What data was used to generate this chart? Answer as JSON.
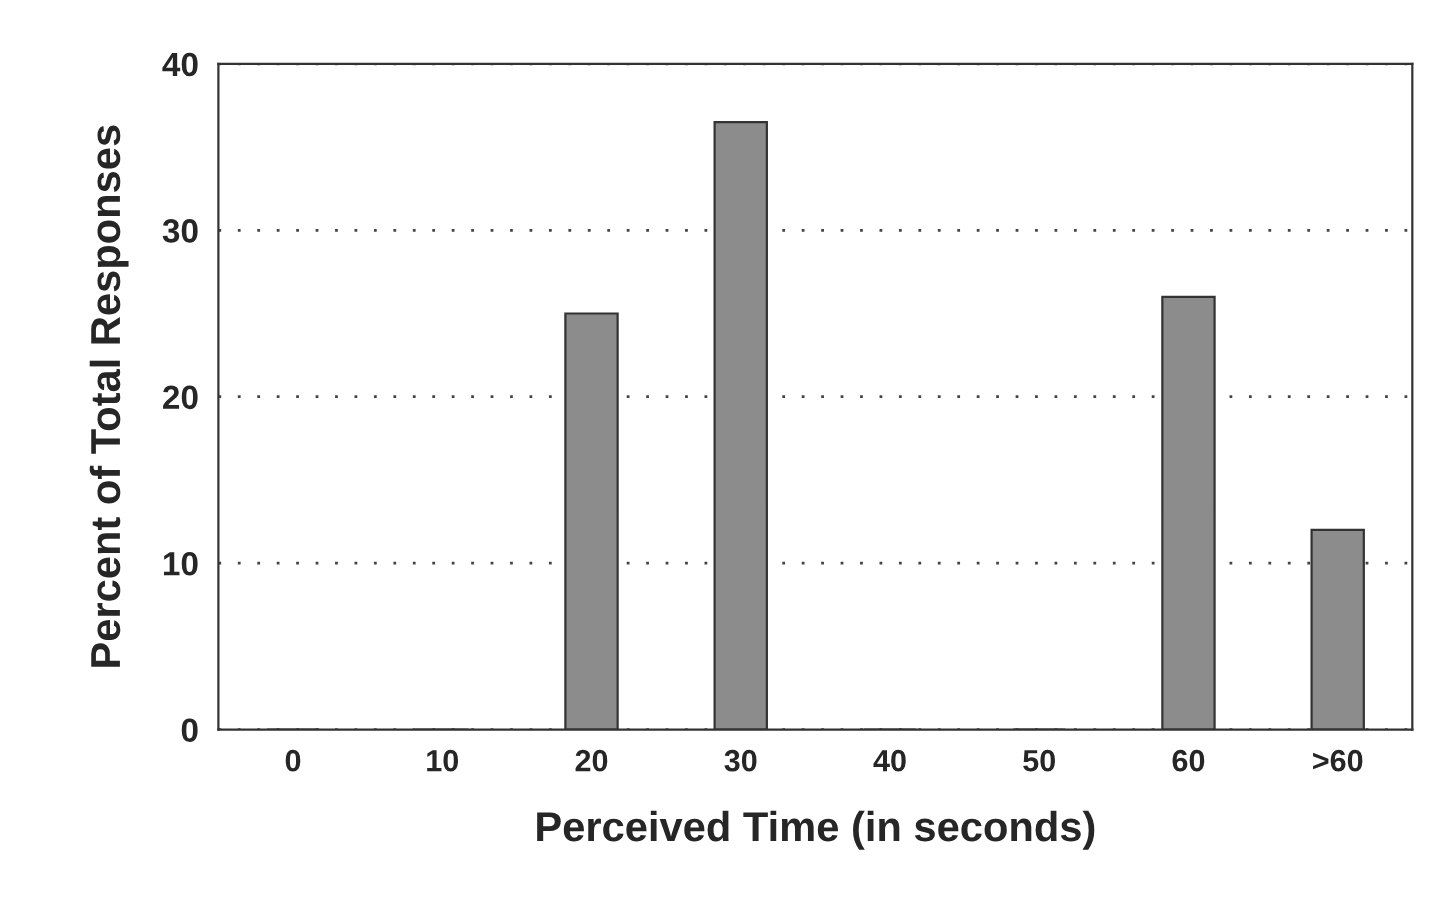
{
  "chart_data": {
    "type": "bar",
    "xlabel": "Perceived Time (in seconds)",
    "ylabel": "Percent of Total Responses",
    "categories": [
      "0",
      "10",
      "20",
      "30",
      "40",
      "50",
      "60",
      ">60"
    ],
    "values": [
      0,
      0,
      25,
      36.5,
      0,
      0,
      26,
      12
    ],
    "color": "#8c8c8c",
    "ylim": [
      0,
      40
    ],
    "yticks": [
      0,
      10,
      20,
      30,
      40
    ],
    "grid": "y"
  }
}
